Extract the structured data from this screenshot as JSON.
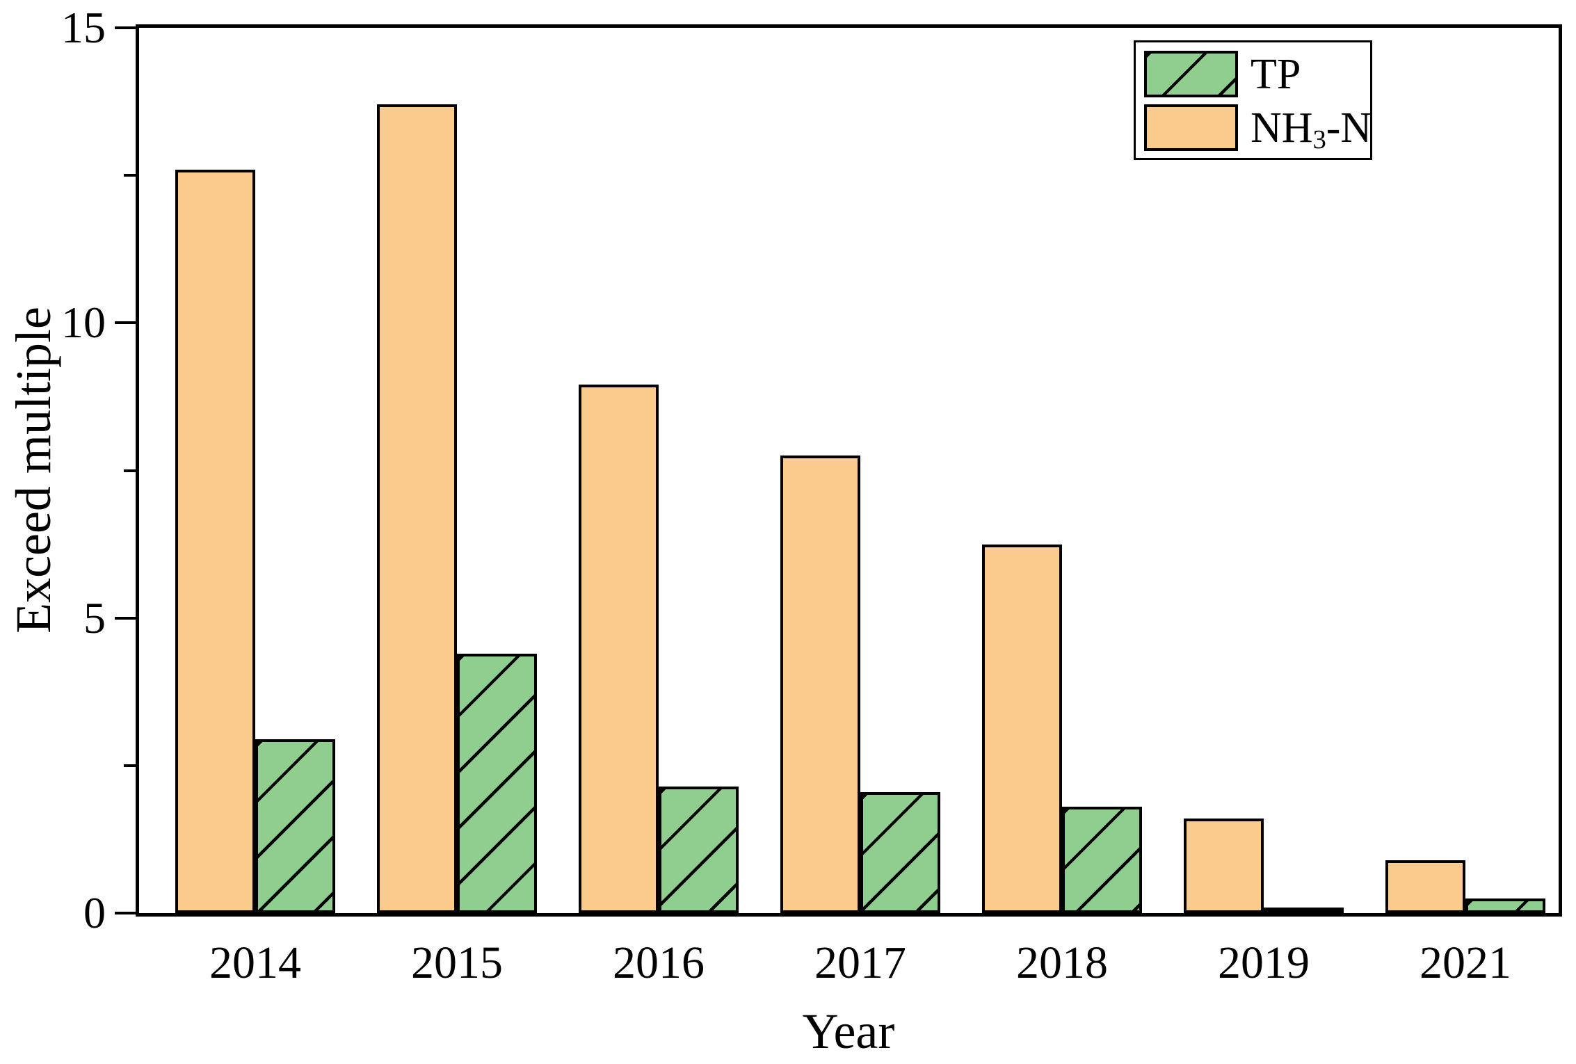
{
  "chart_data": {
    "type": "bar",
    "title": "",
    "xlabel": "Year",
    "ylabel": "Exceed multiple",
    "categories": [
      "2014",
      "2015",
      "2016",
      "2017",
      "2018",
      "2019",
      "2021"
    ],
    "series": [
      {
        "name": "NH3-N",
        "legend_label": {
          "pre": "NH",
          "sub": "3",
          "post": "-N"
        },
        "color": "#FBCB8E",
        "edge_color": "#000000",
        "hatch": "none",
        "values": [
          12.6,
          13.7,
          8.95,
          7.75,
          6.25,
          1.6,
          0.9
        ]
      },
      {
        "name": "TP",
        "legend_label": {
          "pre": "TP",
          "sub": "",
          "post": ""
        },
        "color": "#90CE90",
        "edge_color": "#000000",
        "hatch": "diagonal-forward",
        "values": [
          2.95,
          4.4,
          2.15,
          2.05,
          1.8,
          0.1,
          0.25
        ]
      }
    ],
    "ylim": [
      0,
      15
    ],
    "yticks_major": [
      0,
      5,
      10,
      15
    ],
    "yticks_minor": [
      2.5,
      7.5,
      12.5
    ],
    "grid": false,
    "legend": {
      "position": "top-right",
      "order": [
        "TP",
        "NH3-N"
      ]
    },
    "background_color": "#FFFFFF",
    "spine_color": "#000000"
  }
}
